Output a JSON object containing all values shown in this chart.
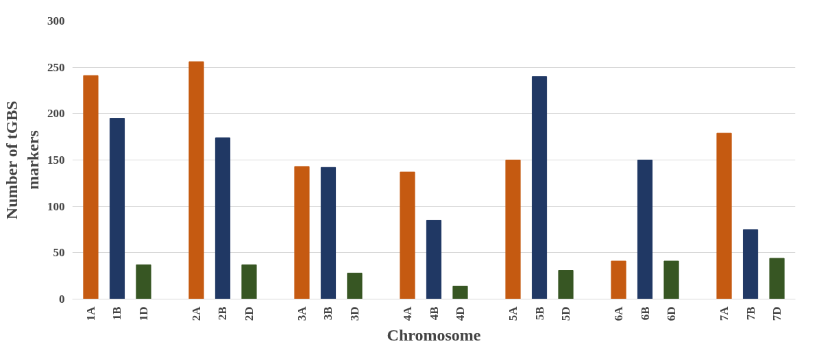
{
  "chart_data": {
    "type": "bar",
    "xlabel": "Chromosome",
    "ylabel": "Number of tGBS markers",
    "categories": [
      "1A",
      "1B",
      "1D",
      null,
      "2A",
      "2B",
      "2D",
      null,
      "3A",
      "3B",
      "3D",
      null,
      "4A",
      "4B",
      "4D",
      null,
      "5A",
      "5B",
      "5D",
      null,
      "6A",
      "6B",
      "6D",
      null,
      "7A",
      "7B",
      "7D"
    ],
    "values": [
      241,
      195,
      37,
      null,
      256,
      174,
      37,
      null,
      143,
      142,
      28,
      null,
      137,
      85,
      14,
      null,
      150,
      240,
      31,
      null,
      41,
      150,
      41,
      null,
      179,
      75,
      44
    ],
    "colors": [
      "#c55a11",
      "#203864",
      "#375623",
      null,
      "#c55a11",
      "#203864",
      "#375623",
      null,
      "#c55a11",
      "#203864",
      "#375623",
      null,
      "#c55a11",
      "#203864",
      "#375623",
      null,
      "#c55a11",
      "#203864",
      "#375623",
      null,
      "#c55a11",
      "#203864",
      "#375623",
      null,
      "#c55a11",
      "#203864",
      "#375623"
    ],
    "ylim": [
      0,
      300
    ],
    "yticks": [
      0,
      50,
      100,
      150,
      200,
      250,
      300
    ],
    "grid": "y"
  }
}
